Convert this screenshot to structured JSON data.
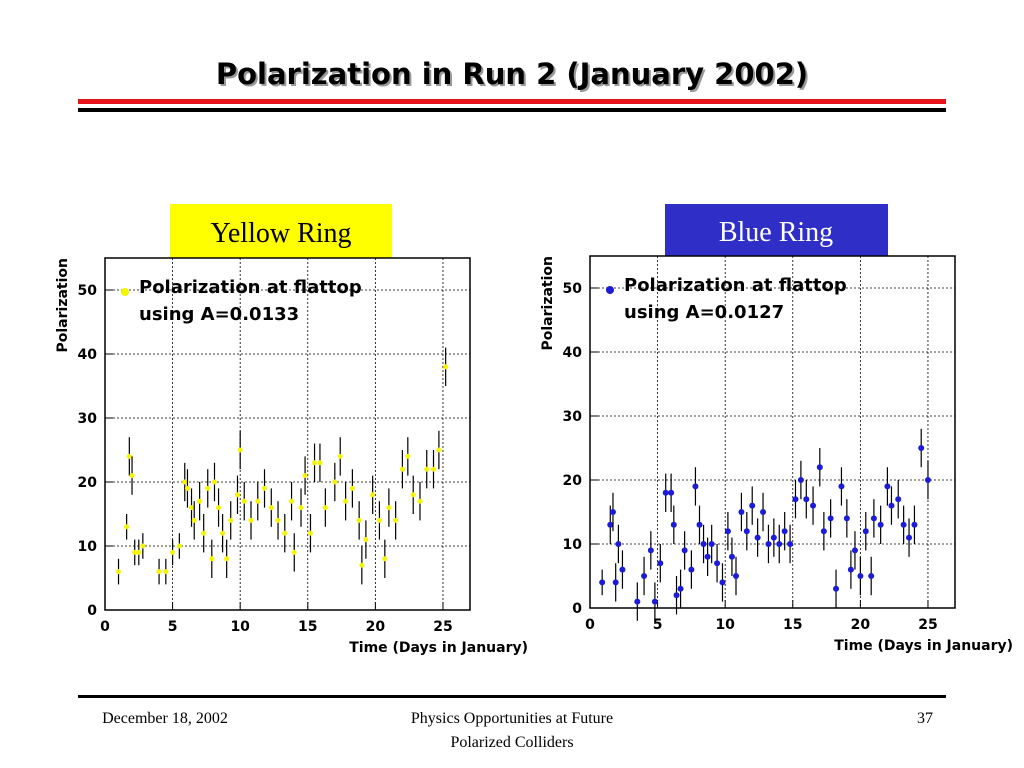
{
  "title": "Polarization in Run 2 (January 2002)",
  "panels": [
    "Yellow Ring",
    "Blue Ring"
  ],
  "footer": {
    "date": "December 18, 2002",
    "event": [
      "Physics Opportunities at Future",
      "Polarized Colliders"
    ],
    "page": "37"
  },
  "chart_data": [
    {
      "type": "scatter",
      "xlabel": "Time (Days in January)",
      "ylabel": "Polarization",
      "xlim": [
        0,
        27
      ],
      "ylim": [
        0,
        55
      ],
      "xticks": [
        0,
        5,
        10,
        15,
        20,
        25
      ],
      "yticks": [
        0,
        10,
        20,
        30,
        40,
        50
      ],
      "grid": true,
      "annotation": "using A=0.0133",
      "series": [
        {
          "name": "Polarization at flattop",
          "color": "#f5f500",
          "x": [
            1.0,
            1.6,
            1.8,
            2.0,
            2.2,
            2.5,
            2.8,
            4.0,
            4.5,
            5.0,
            5.5,
            5.9,
            6.1,
            6.4,
            6.6,
            7.0,
            7.3,
            7.6,
            7.9,
            8.1,
            8.4,
            8.7,
            9.0,
            9.3,
            9.8,
            10.0,
            10.3,
            10.8,
            11.3,
            11.8,
            12.3,
            12.8,
            13.3,
            13.8,
            14.0,
            14.5,
            14.8,
            15.2,
            15.5,
            15.9,
            16.3,
            17.0,
            17.4,
            17.8,
            18.3,
            18.8,
            19.0,
            19.3,
            19.8,
            20.3,
            20.7,
            21.0,
            21.5,
            22.0,
            22.4,
            22.8,
            23.3,
            23.8,
            24.3,
            24.7,
            25.2
          ],
          "values": [
            6,
            13,
            24,
            21,
            9,
            9,
            10,
            6,
            6,
            9,
            10,
            20,
            19,
            16,
            14,
            17,
            12,
            19,
            8,
            20,
            16,
            12,
            8,
            14,
            18,
            25,
            17,
            14,
            17,
            19,
            16,
            14,
            12,
            17,
            9,
            16,
            21,
            12,
            23,
            23,
            16,
            20,
            24,
            17,
            19,
            14,
            7,
            11,
            18,
            14,
            8,
            16,
            14,
            22,
            24,
            18,
            17,
            22,
            22,
            25,
            38
          ],
          "errors": [
            2,
            2,
            3,
            3,
            2,
            2,
            2,
            2,
            2,
            2,
            2,
            3,
            3,
            3,
            3,
            3,
            3,
            3,
            3,
            3,
            3,
            3,
            3,
            3,
            3,
            3,
            3,
            3,
            3,
            3,
            3,
            3,
            3,
            3,
            3,
            3,
            3,
            3,
            3,
            3,
            3,
            3,
            3,
            3,
            3,
            3,
            3,
            3,
            3,
            3,
            3,
            3,
            3,
            3,
            3,
            3,
            3,
            3,
            3,
            3,
            3
          ]
        }
      ]
    },
    {
      "type": "scatter",
      "xlabel": "Time (Days in January)",
      "ylabel": "Polarization",
      "xlim": [
        0,
        27
      ],
      "ylim": [
        0,
        55
      ],
      "xticks": [
        0,
        5,
        10,
        15,
        20,
        25
      ],
      "yticks": [
        0,
        10,
        20,
        30,
        40,
        50
      ],
      "grid": true,
      "annotation": "using A=0.0127",
      "series": [
        {
          "name": "Polarization at flattop",
          "color": "#1c1cd6",
          "x": [
            0.9,
            1.5,
            1.7,
            1.9,
            2.1,
            2.4,
            3.5,
            4.0,
            4.5,
            4.8,
            5.2,
            5.6,
            6.0,
            6.2,
            6.4,
            6.7,
            7.0,
            7.5,
            7.8,
            8.1,
            8.4,
            8.7,
            9.0,
            9.4,
            9.8,
            10.2,
            10.5,
            10.8,
            11.2,
            11.6,
            12.0,
            12.4,
            12.8,
            13.2,
            13.6,
            14.0,
            14.4,
            14.8,
            15.2,
            15.6,
            16.0,
            16.5,
            17.0,
            17.3,
            17.8,
            18.2,
            18.6,
            19.0,
            19.3,
            19.6,
            20.0,
            20.4,
            20.8,
            21.0,
            21.5,
            22.0,
            22.3,
            22.8,
            23.2,
            23.6,
            24.0,
            24.5,
            25.0
          ],
          "values": [
            4,
            13,
            15,
            4,
            10,
            6,
            1,
            5,
            9,
            1,
            7,
            18,
            18,
            13,
            2,
            3,
            9,
            6,
            19,
            13,
            10,
            8,
            10,
            7,
            4,
            12,
            8,
            5,
            15,
            12,
            16,
            11,
            15,
            10,
            11,
            10,
            12,
            10,
            17,
            20,
            17,
            16,
            22,
            12,
            14,
            3,
            19,
            14,
            6,
            9,
            5,
            12,
            5,
            14,
            13,
            19,
            16,
            17,
            13,
            11,
            13,
            25,
            20
          ],
          "errors": [
            2,
            3,
            3,
            3,
            3,
            3,
            3,
            3,
            3,
            3,
            3,
            3,
            3,
            3,
            3,
            3,
            3,
            3,
            3,
            3,
            3,
            3,
            3,
            3,
            3,
            3,
            3,
            3,
            3,
            3,
            3,
            3,
            3,
            3,
            3,
            3,
            3,
            3,
            3,
            3,
            3,
            3,
            3,
            3,
            3,
            3,
            3,
            3,
            3,
            3,
            3,
            3,
            3,
            3,
            3,
            3,
            3,
            3,
            3,
            3,
            3,
            3,
            3
          ]
        }
      ]
    }
  ]
}
